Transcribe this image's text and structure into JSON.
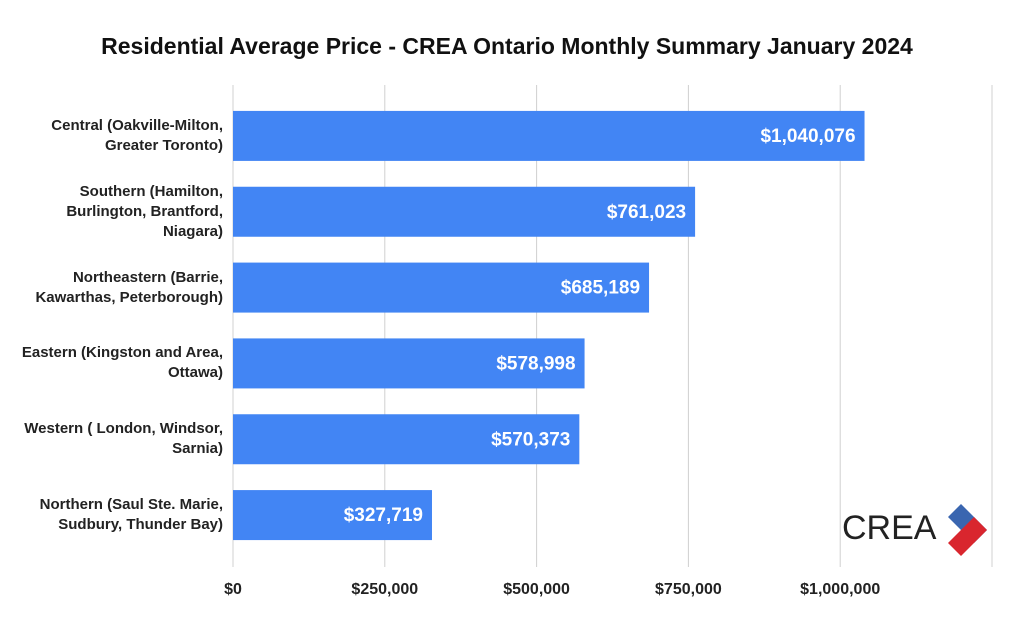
{
  "chart_data": {
    "type": "bar",
    "orientation": "horizontal",
    "title": "Residential Average Price - CREA Ontario Monthly Summary January 2024",
    "categories": [
      "Central (Oakville-Milton, Greater Toronto)",
      "Southern (Hamilton, Burlington, Brantford, Niagara)",
      "Northeastern (Barrie, Kawarthas, Peterborough)",
      "Eastern (Kingston and Area, Ottawa)",
      "Western ( London, Windsor, Sarnia)",
      "Northern (Saul Ste. Marie, Sudbury, Thunder Bay)"
    ],
    "values": [
      1040076,
      761023,
      685189,
      578998,
      570373,
      327719
    ],
    "value_labels": [
      "$1,040,076",
      "$761,023",
      "$685,189",
      "$578,998",
      "$570,373",
      "$327,719"
    ],
    "color": "#4285f4",
    "xlim": [
      0,
      1250000
    ],
    "xticks": [
      {
        "value": 0,
        "label": "$0"
      },
      {
        "value": 250000,
        "label": "$250,000"
      },
      {
        "value": 500000,
        "label": "$500,000"
      },
      {
        "value": 750000,
        "label": "$750,000"
      },
      {
        "value": 1000000,
        "label": "$1,000,000"
      }
    ],
    "grid": true,
    "logo": "CREA"
  }
}
